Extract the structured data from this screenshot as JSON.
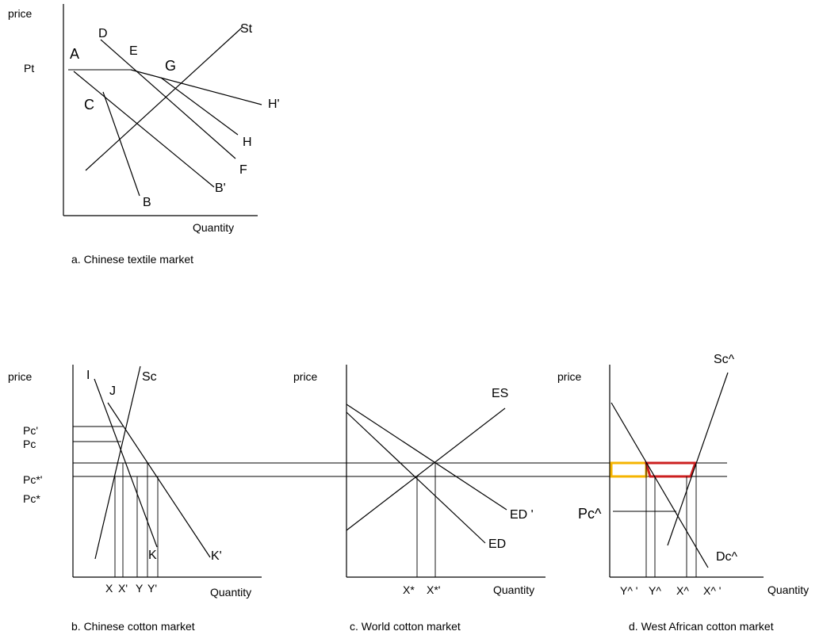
{
  "panel_a": {
    "caption": "a. Chinese textile market",
    "y_axis_label": "price",
    "x_axis_label": "Quantity",
    "price_label": "Pt",
    "points": {
      "A": "A",
      "B": "B",
      "B_prime": "B'",
      "C": "C",
      "D": "D",
      "E": "E",
      "F": "F",
      "G": "G",
      "H": "H",
      "H_prime": "H'",
      "St": "St"
    }
  },
  "panel_b": {
    "caption": "b. Chinese cotton market",
    "y_axis_label": "price",
    "x_axis_label": "Quantity",
    "price_labels": [
      "Pc'",
      "Pc",
      "Pc*'",
      "Pc*"
    ],
    "points": {
      "I": "I",
      "J": "J",
      "K": "K",
      "K_prime": "K'",
      "Sc": "Sc"
    },
    "x_labels": [
      "X",
      "X'",
      "Y",
      "Y'"
    ]
  },
  "panel_c": {
    "caption": "c. World cotton market",
    "y_axis_label": "price",
    "x_axis_label": "Quantity",
    "points": {
      "ES": "ES",
      "ED": "ED",
      "ED_prime": "ED '"
    },
    "x_labels": [
      "X*",
      "X*'"
    ]
  },
  "panel_d": {
    "caption": "d. West African cotton market",
    "y_axis_label": "price",
    "x_axis_label": "Quantity",
    "price_label": "Pc^",
    "points": {
      "Sc": "Sc^",
      "Dc": "Dc^"
    },
    "x_labels": [
      "Y^ '",
      "Y^",
      "X^",
      "X^ '"
    ],
    "colors": {
      "yellow_area": "#f5b400",
      "red_area": "#cc1f1f"
    }
  }
}
